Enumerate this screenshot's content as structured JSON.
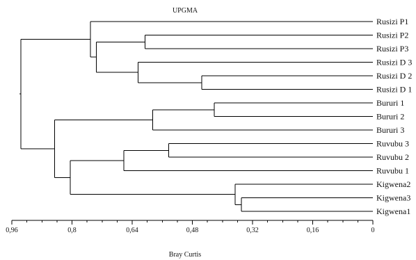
{
  "chart_data": {
    "type": "dendrogram",
    "title": "UPGMA",
    "xlabel": "Bray Curtis",
    "x_reversed": true,
    "xlim": [
      0.96,
      0
    ],
    "xticks": [
      "0,96",
      "0,8",
      "0,64",
      "0,48",
      "0,32",
      "0,16",
      "0"
    ],
    "xtick_values": [
      0.96,
      0.8,
      0.64,
      0.48,
      0.32,
      0.16,
      0
    ],
    "leaves": [
      "Rusizi P1",
      "Rusizi P2",
      "Rusizi P3",
      "Rusizi D 3",
      "Rusizi D 2",
      "Rusizi D 1",
      "Bururi 1",
      "Bururi 2",
      "Bururi 3",
      "Ruvubu 3",
      "Ruvubu 2",
      "Ruvubu 1",
      "Kigwena2",
      "Kigwena3",
      "Kigwena1"
    ],
    "merges": [
      {
        "id": "m1",
        "children": [
          "Rusizi P2",
          "Rusizi P3"
        ],
        "height": 0.606
      },
      {
        "id": "m2",
        "children": [
          "Rusizi D 2",
          "Rusizi D 1"
        ],
        "height": 0.455
      },
      {
        "id": "m3",
        "children": [
          "Rusizi D 3",
          "m2"
        ],
        "height": 0.624
      },
      {
        "id": "m4",
        "children": [
          "m1",
          "m3"
        ],
        "height": 0.735
      },
      {
        "id": "m5",
        "children": [
          "Rusizi P1",
          "m4"
        ],
        "height": 0.751
      },
      {
        "id": "m6",
        "children": [
          "Bururi 1",
          "Bururi 2"
        ],
        "height": 0.422
      },
      {
        "id": "m7",
        "children": [
          "m6",
          "Bururi 3"
        ],
        "height": 0.585
      },
      {
        "id": "m8",
        "children": [
          "Ruvubu 3",
          "Ruvubu 2"
        ],
        "height": 0.543
      },
      {
        "id": "m9",
        "children": [
          "m8",
          "Ruvubu 1"
        ],
        "height": 0.662
      },
      {
        "id": "m10",
        "children": [
          "Kigwena3",
          "Kigwena1"
        ],
        "height": 0.35
      },
      {
        "id": "m11",
        "children": [
          "Kigwena2",
          "m10"
        ],
        "height": 0.366
      },
      {
        "id": "m12",
        "children": [
          "m9",
          "m11"
        ],
        "height": 0.805
      },
      {
        "id": "m13",
        "children": [
          "m7",
          "m12"
        ],
        "height": 0.846
      },
      {
        "id": "m14",
        "children": [
          "m5",
          "m13"
        ],
        "height": 0.936
      }
    ]
  }
}
